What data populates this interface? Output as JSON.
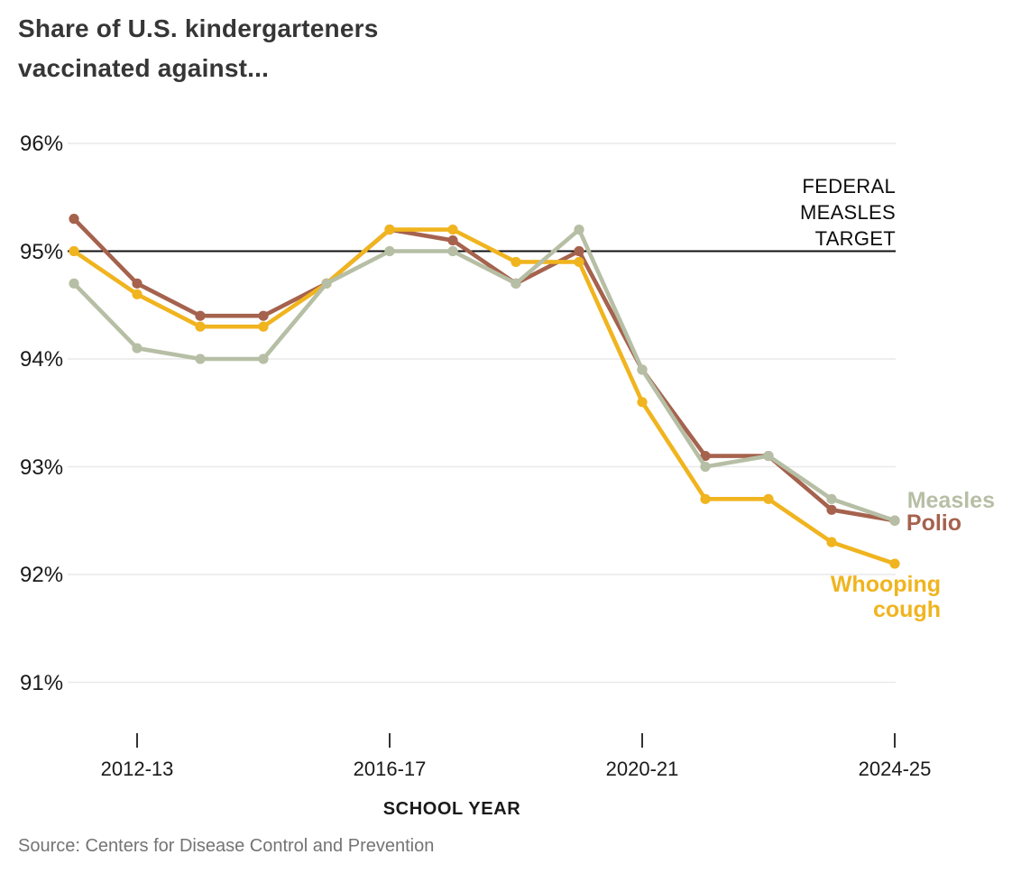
{
  "header": {
    "title_line1": "Share of U.S. kindergarteners",
    "title_line2": "vaccinated against..."
  },
  "chart_data": {
    "type": "line",
    "title": "Share of U.S. kindergarteners vaccinated against...",
    "categories": [
      "2011-12",
      "2012-13",
      "2013-14",
      "2014-15",
      "2015-16",
      "2016-17",
      "2017-18",
      "2018-19",
      "2019-20",
      "2020-21",
      "2021-22",
      "2022-23",
      "2023-24",
      "2024-25"
    ],
    "series": [
      {
        "name": "Measles",
        "color": "#b6bfa5",
        "values": [
          94.7,
          94.1,
          94.0,
          94.0,
          94.7,
          95.0,
          95.0,
          94.7,
          95.2,
          93.9,
          93.0,
          93.1,
          92.7,
          92.5
        ]
      },
      {
        "name": "Polio",
        "color": "#a5624d",
        "values": [
          95.3,
          94.7,
          94.4,
          94.4,
          94.7,
          95.2,
          95.1,
          94.7,
          95.0,
          93.9,
          93.1,
          93.1,
          92.6,
          92.5
        ]
      },
      {
        "name": "Whooping cough",
        "color": "#f0b41f",
        "values": [
          95.0,
          94.6,
          94.3,
          94.3,
          94.7,
          95.2,
          95.2,
          94.9,
          94.9,
          93.6,
          92.7,
          92.7,
          92.3,
          92.1
        ]
      }
    ],
    "target_line": {
      "value": 95,
      "label_lines": [
        "FEDERAL",
        "MEASLES",
        "TARGET"
      ],
      "color": "#111111"
    },
    "y_ticks": [
      {
        "value": 96,
        "label": "96%"
      },
      {
        "value": 95,
        "label": "95%"
      },
      {
        "value": 94,
        "label": "94%"
      },
      {
        "value": 93,
        "label": "93%"
      },
      {
        "value": 92,
        "label": "92%"
      },
      {
        "value": 91,
        "label": "91%"
      }
    ],
    "x_ticks": [
      {
        "index": 1,
        "label": "2012-13"
      },
      {
        "index": 5,
        "label": "2016-17"
      },
      {
        "index": 9,
        "label": "2020-21"
      },
      {
        "index": 13,
        "label": "2024-25"
      }
    ],
    "xlabel": "SCHOOL YEAR",
    "ylabel": "",
    "ylim": [
      91,
      96
    ],
    "grid": "horizontal",
    "legend_position": "right-of-line-ends",
    "grid_color": "#e9e9e9"
  },
  "annotations": {
    "measles_label": "Measles",
    "polio_label": "Polio",
    "whooping_label_line1": "Whooping",
    "whooping_label_line2": "cough"
  },
  "source": "Source: Centers for Disease Control and Prevention"
}
